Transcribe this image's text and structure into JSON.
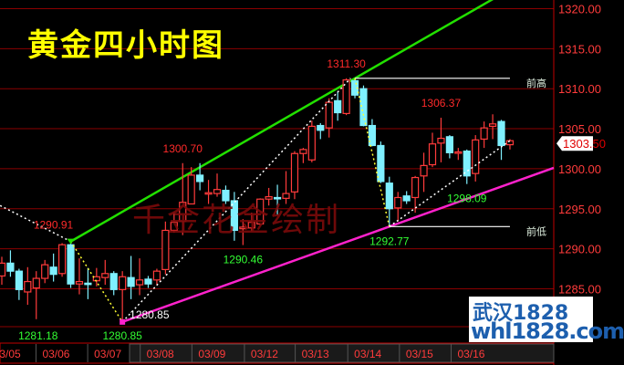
{
  "title": "黄金四小时图",
  "watermark": "千金花金绘制",
  "brand": {
    "line1": "武汉1828",
    "line2": "whl1828.com"
  },
  "colors": {
    "up": "#ff3b3b",
    "down": "#7ff0ff",
    "grid": "#8b0000",
    "axis_text": "#ff3b3b",
    "upper_trend": "#22e000",
    "lower_trend": "#ff22cc",
    "title": "#ffff00"
  },
  "chart_data": {
    "type": "candlestick",
    "title": "黄金四小时图",
    "ylim": [
      1280,
      1321
    ],
    "y_ticks": [
      "1285.00",
      "1290.00",
      "1295.00",
      "1300.00",
      "1305.00",
      "1310.00",
      "1315.00",
      "1320.00"
    ],
    "y_tick_values": [
      1285,
      1290,
      1295,
      1300,
      1305,
      1310,
      1315,
      1320
    ],
    "x_labels": [
      {
        "label": "03/05",
        "index": 0.6
      },
      {
        "label": "03/06",
        "index": 6.3
      },
      {
        "label": "03/07",
        "index": 12.3
      },
      {
        "label": "03/08",
        "index": 18.4
      },
      {
        "label": "03/09",
        "index": 24.4
      },
      {
        "label": "03/12",
        "index": 30.5
      },
      {
        "label": "03/13",
        "index": 36.4
      },
      {
        "label": "03/14",
        "index": 42.5
      },
      {
        "label": "03/15",
        "index": 48.5
      },
      {
        "label": "03/16",
        "index": 54.5
      }
    ],
    "candles": [
      [
        1286.6,
        1289.0,
        1285.5,
        1288.2
      ],
      [
        1288.2,
        1289.8,
        1286.5,
        1287.2
      ],
      [
        1287.2,
        1287.5,
        1283.6,
        1284.9
      ],
      [
        1284.6,
        1287.7,
        1283.0,
        1285.9
      ],
      [
        1285.1,
        1287.2,
        1281.2,
        1286.3
      ],
      [
        1286.3,
        1288.6,
        1285.7,
        1288.0
      ],
      [
        1287.7,
        1289.4,
        1285.9,
        1286.8
      ],
      [
        1286.9,
        1290.7,
        1286.5,
        1290.5
      ],
      [
        1290.5,
        1290.91,
        1285.1,
        1285.6
      ],
      [
        1285.6,
        1288.8,
        1284.3,
        1285.9
      ],
      [
        1285.7,
        1287.6,
        1283.7,
        1285.6
      ],
      [
        1286.0,
        1287.6,
        1285.3,
        1286.5
      ],
      [
        1286.4,
        1288.6,
        1285.5,
        1286.9
      ],
      [
        1286.9,
        1287.2,
        1284.2,
        1284.9
      ],
      [
        1284.9,
        1287.2,
        1280.85,
        1286.5
      ],
      [
        1286.4,
        1289.1,
        1283.7,
        1285.3
      ],
      [
        1285.5,
        1288.8,
        1284.2,
        1286.1
      ],
      [
        1286.2,
        1286.6,
        1285.1,
        1285.6
      ],
      [
        1286.1,
        1287.5,
        1285.5,
        1287.2
      ],
      [
        1287.4,
        1293.4,
        1286.8,
        1292.3
      ],
      [
        1292.3,
        1294.6,
        1292.0,
        1293.3
      ],
      [
        1293.4,
        1300.7,
        1291.7,
        1295.8
      ],
      [
        1295.6,
        1300.2,
        1295.6,
        1299.2
      ],
      [
        1299.2,
        1300.7,
        1297.3,
        1298.4
      ],
      [
        1296.9,
        1298.6,
        1295.6,
        1297.0
      ],
      [
        1296.9,
        1299.4,
        1296.5,
        1297.4
      ],
      [
        1297.3,
        1297.9,
        1295.6,
        1296.0
      ],
      [
        1296.0,
        1297.1,
        1291.0,
        1292.3
      ],
      [
        1292.5,
        1293.7,
        1290.46,
        1292.7
      ],
      [
        1292.6,
        1294.5,
        1292.2,
        1293.3
      ],
      [
        1293.1,
        1296.3,
        1292.9,
        1296.2
      ],
      [
        1296.2,
        1297.6,
        1295.4,
        1296.5
      ],
      [
        1296.4,
        1298.0,
        1294.2,
        1296.3
      ],
      [
        1296.3,
        1299.7,
        1295.6,
        1296.9
      ],
      [
        1297.1,
        1302.2,
        1296.2,
        1301.9
      ],
      [
        1301.9,
        1302.6,
        1300.7,
        1302.4
      ],
      [
        1301.1,
        1306.0,
        1300.8,
        1305.3
      ],
      [
        1305.4,
        1305.7,
        1303.7,
        1304.8
      ],
      [
        1305.1,
        1308.8,
        1303.9,
        1308.3
      ],
      [
        1308.5,
        1309.6,
        1306.0,
        1307.0
      ],
      [
        1306.9,
        1311.3,
        1306.7,
        1311.1
      ],
      [
        1311.0,
        1311.3,
        1308.8,
        1309.2
      ],
      [
        1310.0,
        1310.4,
        1305.3,
        1305.4
      ],
      [
        1305.4,
        1306.2,
        1302.8,
        1302.9
      ],
      [
        1302.9,
        1303.4,
        1298.2,
        1298.4
      ],
      [
        1298.2,
        1299.0,
        1292.77,
        1295.0
      ],
      [
        1295.1,
        1297.1,
        1293.4,
        1296.4
      ],
      [
        1296.6,
        1297.2,
        1295.6,
        1296.0
      ],
      [
        1296.4,
        1299.1,
        1294.5,
        1298.9
      ],
      [
        1299.1,
        1302.0,
        1297.1,
        1300.4
      ],
      [
        1300.5,
        1304.5,
        1300.2,
        1303.1
      ],
      [
        1303.2,
        1306.37,
        1300.8,
        1303.8
      ],
      [
        1304.0,
        1304.2,
        1301.3,
        1302.0
      ],
      [
        1302.0,
        1302.6,
        1301.1,
        1302.1
      ],
      [
        1302.2,
        1302.4,
        1298.09,
        1299.1
      ],
      [
        1299.4,
        1304.2,
        1298.4,
        1303.6
      ],
      [
        1303.7,
        1305.9,
        1302.6,
        1305.1
      ],
      [
        1305.3,
        1306.8,
        1303.7,
        1305.6
      ],
      [
        1305.9,
        1306.1,
        1301.1,
        1302.9
      ],
      [
        1303.0,
        1303.7,
        1302.4,
        1303.5
      ]
    ],
    "current_price": "1303.50",
    "current_price_value": 1303.5,
    "annotations": [
      {
        "text": "1290.91",
        "color": "red",
        "index": 8,
        "price": 1290.91,
        "pos": "above-left"
      },
      {
        "text": "1281.18",
        "color": "green",
        "index": 4,
        "price": 1281.18,
        "pos": "below"
      },
      {
        "text": "1280.85",
        "color": "green",
        "index": 14,
        "price": 1280.85,
        "pos": "below"
      },
      {
        "text": "1280.85",
        "color": "white",
        "index": 14,
        "price": 1280.85,
        "pos": "right"
      },
      {
        "text": "1300.70",
        "color": "red",
        "index": 21,
        "price": 1300.7,
        "pos": "above"
      },
      {
        "text": "1290.46",
        "color": "green",
        "index": 28,
        "price": 1290.46,
        "pos": "below"
      },
      {
        "text": "1311.30",
        "color": "red",
        "index": 40,
        "price": 1311.3,
        "pos": "above"
      },
      {
        "text": "1306.37",
        "color": "red",
        "index": 51,
        "price": 1306.37,
        "pos": "above"
      },
      {
        "text": "1298.09",
        "color": "green",
        "index": 54,
        "price": 1298.09,
        "pos": "below"
      },
      {
        "text": "1292.77",
        "color": "green",
        "index": 45,
        "price": 1292.77,
        "pos": "below"
      }
    ],
    "trendlines": [
      {
        "name": "upper",
        "color": "green",
        "from": [
          8,
          1290.91
        ],
        "to": [
          41,
          1311.3
        ],
        "extend": true
      },
      {
        "name": "lower",
        "color": "magenta",
        "from": [
          14,
          1280.85
        ],
        "to": [
          45,
          1292.77
        ],
        "extend": true
      }
    ],
    "zigzag": [
      {
        "color": "white",
        "from": [
          -0.2,
          1295.4
        ],
        "to": [
          8,
          1290.91
        ]
      },
      {
        "color": "yellow",
        "from": [
          8,
          1290.91
        ],
        "to": [
          14,
          1280.85
        ]
      },
      {
        "color": "white",
        "from": [
          14,
          1280.85
        ],
        "to": [
          40.5,
          1311.3
        ]
      },
      {
        "color": "yellow",
        "from": [
          41,
          1311.3
        ],
        "to": [
          45,
          1292.77
        ]
      },
      {
        "color": "white",
        "from": [
          45,
          1292.77
        ],
        "to": [
          59,
          1303.5
        ]
      }
    ],
    "levels": [
      {
        "label": "前高",
        "price": 1311.3,
        "from": 41,
        "to": 59
      },
      {
        "label": "前低",
        "price": 1292.77,
        "from": 45,
        "to": 59
      }
    ]
  }
}
